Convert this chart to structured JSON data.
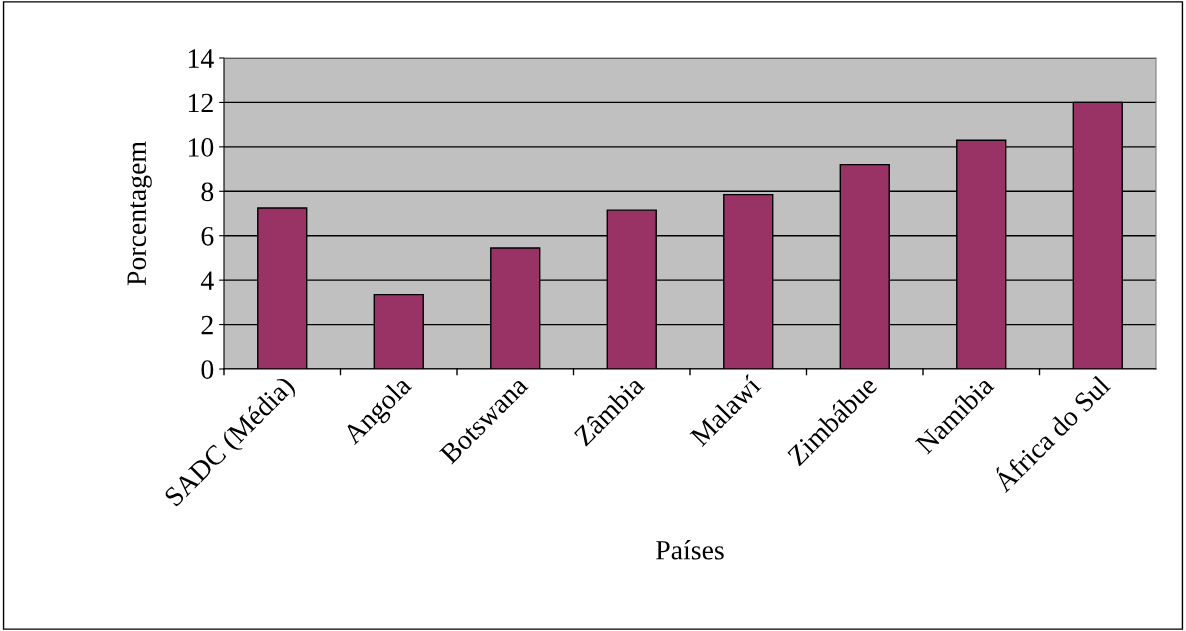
{
  "chart_data": {
    "type": "bar",
    "xlabel": "Países",
    "ylabel": "Porcentagem",
    "categories": [
      "SADC (Média)",
      "Angola",
      "Botswana",
      "Zâmbia",
      "Malawí",
      "Zimbábue",
      "Namíbia",
      "África do Sul"
    ],
    "values": [
      7.25,
      3.35,
      5.45,
      7.15,
      7.85,
      9.2,
      10.3,
      12.0
    ],
    "color": "#993366",
    "ylim": [
      0,
      14
    ],
    "yticks": [
      0,
      2,
      4,
      6,
      8,
      10,
      12,
      14
    ],
    "grid": "y"
  }
}
